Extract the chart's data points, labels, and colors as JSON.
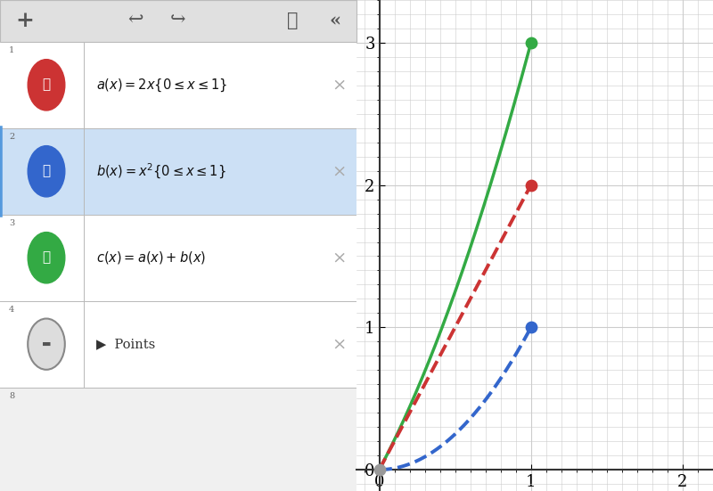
{
  "fig_width": 8.0,
  "fig_height": 5.51,
  "dpi": 100,
  "background_color": "#f0f0f0",
  "toolbar_bg": "#e0e0e0",
  "left_panel_bg": "#ffffff",
  "right_panel_bg": "#ffffff",
  "grid_color": "#cccccc",
  "axis_color": "#333333",
  "row2_bg": "#cce0f5",
  "row_line_color": "#b8b8b8",
  "x_min": -0.15,
  "x_max": 2.2,
  "y_min": -0.15,
  "y_max": 3.3,
  "x_ticks": [
    0,
    1,
    2
  ],
  "y_ticks": [
    0,
    1,
    2,
    3
  ],
  "func_a_color": "#cc3333",
  "func_b_color": "#3366cc",
  "func_c_color": "#33aa44",
  "origin_dot_color": "#999999",
  "line_width": 2.5,
  "dashed_linewidth": 2.8,
  "dot_size": 80,
  "row_labels": [
    "1",
    "2",
    "3",
    "4"
  ],
  "points_label": "Points",
  "icon_colors": [
    "#cc3333",
    "#3366cc",
    "#33aa44",
    "#888888"
  ]
}
